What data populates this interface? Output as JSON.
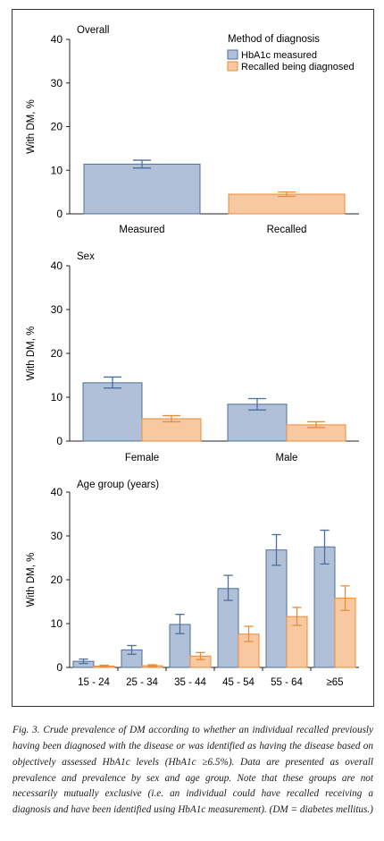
{
  "colors": {
    "measured_fill": "#b0c0d9",
    "measured_stroke": "#4d6f9d",
    "recalled_fill": "#f8c9a0",
    "recalled_stroke": "#e98c39"
  },
  "legend": {
    "title": "Method of diagnosis",
    "items": [
      "HbA1c measured",
      "Recalled being diagnosed"
    ]
  },
  "chart_data": [
    {
      "type": "bar",
      "title": "Overall",
      "ylabel": "With DM, %",
      "ylim": [
        0,
        40
      ],
      "yticks": [
        0,
        10,
        20,
        30,
        40
      ],
      "categories": [
        "Measured",
        "Recalled"
      ],
      "series": [
        {
          "values": [
            11.4,
            null
          ],
          "err_low": [
            10.5,
            null
          ],
          "err_high": [
            12.3,
            null
          ]
        },
        {
          "values": [
            null,
            4.5
          ],
          "err_low": [
            null,
            4.0
          ],
          "err_high": [
            null,
            5.0
          ]
        }
      ]
    },
    {
      "type": "bar",
      "title": "Sex",
      "ylabel": "With DM, %",
      "ylim": [
        0,
        40
      ],
      "yticks": [
        0,
        10,
        20,
        30,
        40
      ],
      "categories": [
        "Female",
        "Male"
      ],
      "series": [
        {
          "name": "HbA1c measured",
          "values": [
            13.3,
            8.4
          ],
          "err_low": [
            12.1,
            7.1
          ],
          "err_high": [
            14.6,
            9.7
          ]
        },
        {
          "name": "Recalled being diagnosed",
          "values": [
            5.1,
            3.7
          ],
          "err_low": [
            4.4,
            3.1
          ],
          "err_high": [
            5.8,
            4.4
          ]
        }
      ]
    },
    {
      "type": "bar",
      "title": "Age group (years)",
      "ylabel": "With DM, %",
      "ylim": [
        0,
        40
      ],
      "yticks": [
        0,
        10,
        20,
        30,
        40
      ],
      "categories": [
        "15 - 24",
        "25 - 34",
        "35 - 44",
        "45 - 54",
        "55 - 64",
        "≥65"
      ],
      "series": [
        {
          "name": "HbA1c measured",
          "values": [
            1.4,
            4.0,
            9.8,
            18.0,
            26.8,
            27.5
          ],
          "err_low": [
            0.9,
            3.0,
            7.7,
            15.3,
            23.3,
            23.6
          ],
          "err_high": [
            1.9,
            5.0,
            12.1,
            21.0,
            30.3,
            31.3
          ]
        },
        {
          "name": "Recalled being diagnosed",
          "values": [
            0.3,
            0.4,
            2.6,
            7.6,
            11.6,
            15.8
          ],
          "err_low": [
            0.1,
            0.2,
            1.8,
            5.9,
            9.6,
            13.0
          ],
          "err_high": [
            0.5,
            0.6,
            3.4,
            9.4,
            13.7,
            18.6
          ]
        }
      ]
    }
  ],
  "caption": "Fig. 3. Crude prevalence of DM according to whether an individual recalled previously having been diagnosed with the disease or was identified as having the disease based on objectively assessed HbA1c levels (HbA1c ≥6.5%). Data are presented as overall prevalence and prevalence by sex and age group. Note that these groups are not necessarily mutually exclusive (i.e. an individual could have recalled receiving a diagnosis and have been identified using HbA1c measurement). (DM = diabetes mellitus.)"
}
